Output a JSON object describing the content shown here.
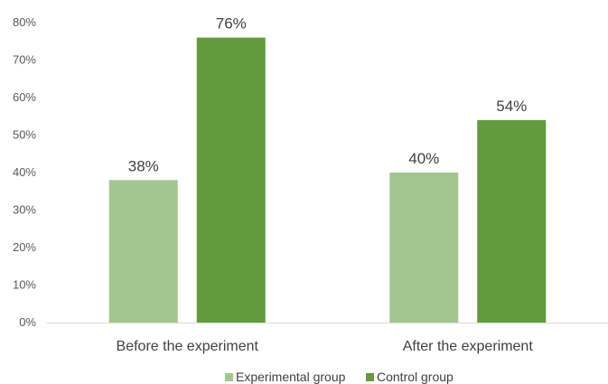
{
  "chart_data": {
    "type": "bar",
    "categories": [
      "Before the experiment",
      "After the experiment"
    ],
    "series": [
      {
        "name": "Experimental group",
        "values": [
          38,
          40
        ],
        "color": "#A3C690"
      },
      {
        "name": "Control group",
        "values": [
          76,
          54
        ],
        "color": "#629B3D"
      }
    ],
    "ylim": [
      0,
      80
    ],
    "yticks": [
      "0%",
      "10%",
      "20%",
      "30%",
      "40%",
      "50%",
      "60%",
      "70%",
      "80%"
    ],
    "data_labels": [
      [
        "38%",
        "40%"
      ],
      [
        "76%",
        "54%"
      ]
    ],
    "legend_position": "bottom",
    "grid": false
  }
}
